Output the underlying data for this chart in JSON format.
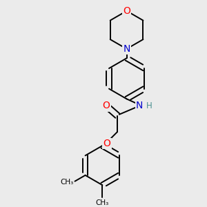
{
  "bg_color": "#ebebeb",
  "bond_color": "#000000",
  "atom_colors": {
    "O": "#ff0000",
    "N": "#0000cd",
    "H": "#4a9090",
    "C": "#000000"
  },
  "bond_width": 1.4,
  "font_size_atoms": 10,
  "font_size_small": 8.5
}
